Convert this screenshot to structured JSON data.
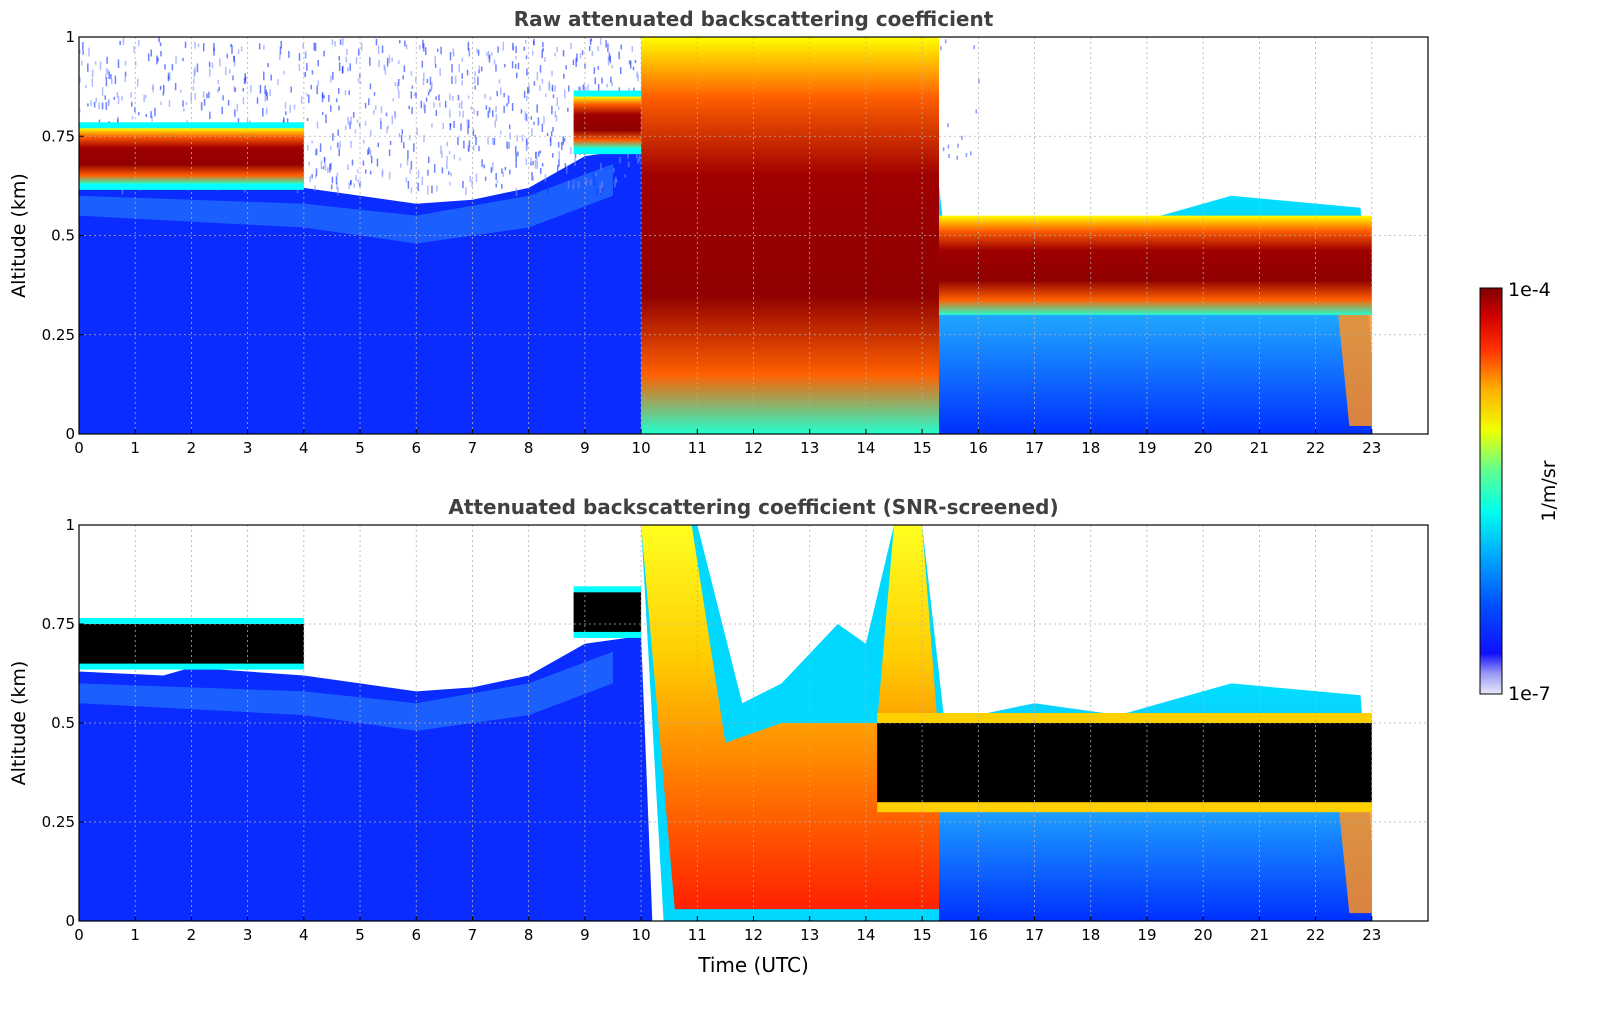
{
  "chart_data": [
    {
      "type": "heatmap",
      "title": "Raw attenuated backscattering coefficient",
      "xlabel": "",
      "ylabel": "Altitude (km)",
      "xlim": [
        0,
        24
      ],
      "ylim": [
        0,
        1
      ],
      "x_ticks": [
        0,
        1,
        2,
        3,
        4,
        5,
        6,
        7,
        8,
        9,
        10,
        11,
        12,
        13,
        14,
        15,
        16,
        17,
        18,
        19,
        20,
        21,
        22,
        23
      ],
      "y_ticks": [
        {
          "value": 0,
          "label": "0"
        },
        {
          "value": 0.25,
          "label": "0.25"
        },
        {
          "value": 0.5,
          "label": "0.5"
        },
        {
          "value": 0.75,
          "label": "0.75"
        },
        {
          "value": 1,
          "label": "1"
        }
      ],
      "grid": true,
      "data_end_time": 23,
      "features": [
        {
          "name": "cloud layer",
          "x_range": [
            0,
            4
          ],
          "altitude_km": [
            0.63,
            0.77
          ],
          "level": "1e-4"
        },
        {
          "name": "cloud layer",
          "x_range": [
            8.8,
            10
          ],
          "altitude_km": [
            0.72,
            0.85
          ],
          "level": "1e-4"
        },
        {
          "name": "precipitation / thick cloud",
          "x_range": [
            10,
            15.3
          ],
          "altitude_km": [
            0,
            1
          ],
          "level": "high"
        },
        {
          "name": "cloud layer",
          "x_range": [
            15.3,
            23
          ],
          "altitude_km": [
            0.3,
            0.55
          ],
          "level": "1e-4"
        }
      ]
    },
    {
      "type": "heatmap",
      "title": "Attenuated backscattering coefficient (SNR-screened)",
      "xlabel": "Time (UTC)",
      "ylabel": "Altitude (km)",
      "xlim": [
        0,
        24
      ],
      "ylim": [
        0,
        1
      ],
      "x_ticks": [
        0,
        1,
        2,
        3,
        4,
        5,
        6,
        7,
        8,
        9,
        10,
        11,
        12,
        13,
        14,
        15,
        16,
        17,
        18,
        19,
        20,
        21,
        22,
        23
      ],
      "y_ticks": [
        {
          "value": 0,
          "label": "0"
        },
        {
          "value": 0.25,
          "label": "0.25"
        },
        {
          "value": 0.5,
          "label": "0.5"
        },
        {
          "value": 0.75,
          "label": "0.75"
        },
        {
          "value": 1,
          "label": "1"
        }
      ],
      "grid": true,
      "data_end_time": 23,
      "features": [
        {
          "name": "saturated (black)",
          "x_range": [
            0,
            4
          ],
          "altitude_km": [
            0.65,
            0.75
          ]
        },
        {
          "name": "saturated (black)",
          "x_range": [
            8.8,
            10
          ],
          "altitude_km": [
            0.73,
            0.83
          ]
        },
        {
          "name": "saturated (black)",
          "x_range": [
            14.2,
            23
          ],
          "altitude_km": [
            0.3,
            0.5
          ]
        }
      ]
    }
  ],
  "colorbar": {
    "label": "1/m/sr",
    "max_label": "1e-4",
    "min_label": "1e-7",
    "scale": "log",
    "colormap": [
      "#e6e6fa",
      "#0000ff",
      "#00ffff",
      "#ffff00",
      "#ff0000",
      "#800000"
    ]
  }
}
